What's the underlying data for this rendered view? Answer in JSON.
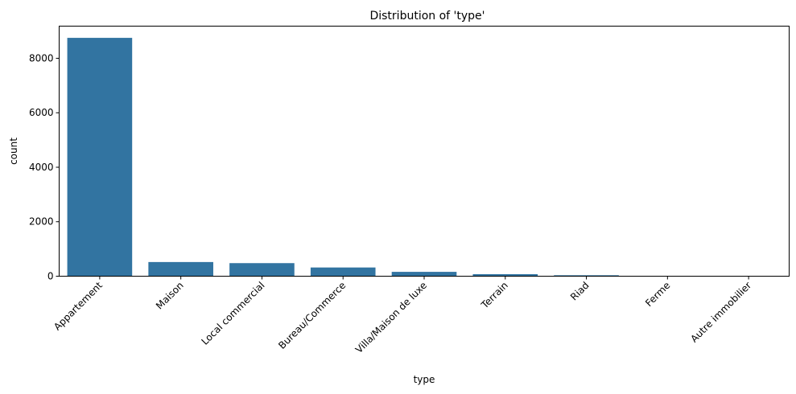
{
  "colors": {
    "bar": "#3274a1",
    "axis": "#000000",
    "background": "#ffffff"
  },
  "chart_data": {
    "type": "bar",
    "title": "Distribution of 'type'",
    "xlabel": "type",
    "ylabel": "count",
    "categories": [
      "Appartement",
      "Maison",
      "Local commercial",
      "Bureau/Commerce",
      "Villa/Maison de luxe",
      "Terrain",
      "Riad",
      "Ferme",
      "Autre immobilier"
    ],
    "values": [
      8750,
      520,
      480,
      320,
      160,
      75,
      35,
      5,
      3
    ],
    "ylim": [
      0,
      9180
    ],
    "yticks": [
      0,
      2000,
      4000,
      6000,
      8000
    ],
    "ytick_labels": [
      "0",
      "2000",
      "4000",
      "6000",
      "8000"
    ],
    "grid": false,
    "legend": false
  }
}
